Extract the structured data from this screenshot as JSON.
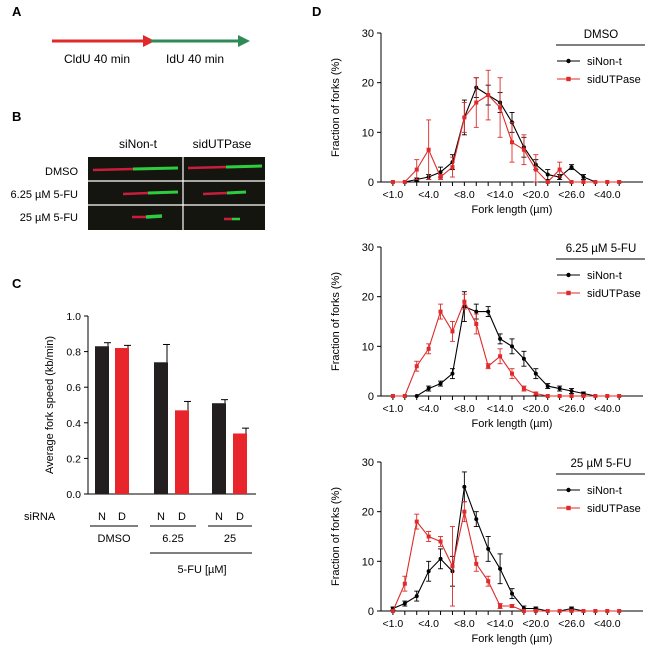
{
  "panels": {
    "A": {
      "letter": "A",
      "cldu_label": "CldU 40 min",
      "idu_label": "IdU 40 min",
      "colors": {
        "cldu": "#e02a2a",
        "idu": "#2e8b57"
      }
    },
    "B": {
      "letter": "B",
      "columns": [
        "siNon-t",
        "sidUTPase"
      ],
      "rows": [
        "DMSO",
        "6.25 µM 5-FU",
        "25 µM 5-FU"
      ],
      "colors": {
        "background": "#151510",
        "red": "#c81e3c",
        "green": "#2ecc40"
      }
    },
    "C": {
      "letter": "C",
      "siRNA_label": "siRNA",
      "group_labels": [
        "DMSO",
        "6.25",
        "25"
      ],
      "treatment_label": "5-FU [µM]"
    },
    "D": {
      "letter": "D"
    }
  },
  "chart_data": [
    {
      "id": "C",
      "type": "bar",
      "ylabel": "Average fork speed (kb/min)",
      "ylim": [
        0,
        1.0
      ],
      "yticks": [
        "0.0",
        "0.2",
        "0.4",
        "0.6",
        "0.8",
        "1.0"
      ],
      "groups": [
        "DMSO",
        "6.25",
        "25"
      ],
      "categories": [
        "N",
        "D",
        "N",
        "D",
        "N",
        "D"
      ],
      "values": [
        0.83,
        0.82,
        0.74,
        0.47,
        0.51,
        0.34
      ],
      "errors": [
        0.02,
        0.015,
        0.1,
        0.05,
        0.02,
        0.03
      ],
      "colors": [
        "#231f20",
        "#e8252b",
        "#231f20",
        "#e8252b",
        "#231f20",
        "#e8252b"
      ]
    },
    {
      "id": "D1",
      "type": "line",
      "title": "DMSO",
      "xlabel": "Fork length (µm)",
      "ylabel": "Fraction of forks (%)",
      "ylim": [
        0,
        30
      ],
      "yticks": [
        "0",
        "10",
        "20",
        "30"
      ],
      "xlim": [
        0,
        22
      ],
      "xtick_positions": [
        1,
        4,
        7,
        10,
        13,
        16,
        19
      ],
      "xtick_labels": [
        "<1.0",
        "<4.0",
        "<8.0",
        "<14.0",
        "<20.0",
        "<26.0",
        "<40.0"
      ],
      "series": [
        {
          "name": "siNon-t",
          "color": "#000000",
          "x": [
            1,
            2,
            3,
            4,
            5,
            6,
            7,
            8,
            9,
            10,
            11,
            12,
            13,
            14,
            15,
            16,
            17,
            18,
            19,
            20
          ],
          "y": [
            0,
            0,
            0.5,
            1,
            2,
            4,
            13,
            19,
            17.5,
            16,
            12,
            7,
            3.5,
            1.5,
            1,
            3,
            1,
            0,
            0,
            0
          ],
          "err": [
            0,
            0,
            0.3,
            0.5,
            1,
            1.5,
            3.5,
            2,
            2,
            2,
            2,
            2,
            1,
            1,
            0.5,
            0.5,
            0.5,
            0,
            0,
            0
          ]
        },
        {
          "name": "sidUTPase",
          "color": "#e02a2a",
          "x": [
            1,
            2,
            3,
            4,
            5,
            6,
            7,
            8,
            9,
            10,
            11,
            12,
            13,
            14,
            15,
            16,
            17,
            18,
            19,
            20
          ],
          "y": [
            0,
            0,
            2.5,
            6.5,
            1,
            3,
            13,
            16,
            17.5,
            15,
            8,
            6.5,
            2.5,
            0,
            2.5,
            0,
            0,
            0,
            0,
            0
          ],
          "err": [
            0,
            0,
            2,
            6,
            0.5,
            2,
            3,
            5,
            5,
            6,
            4,
            3,
            3,
            0,
            1.5,
            0,
            0,
            0,
            0,
            0
          ]
        }
      ],
      "legend": "top-right"
    },
    {
      "id": "D2",
      "type": "line",
      "title": "6.25 µM 5-FU",
      "xlabel": "Fork length (µm)",
      "ylabel": "Fraction of forks (%)",
      "ylim": [
        0,
        30
      ],
      "yticks": [
        "0",
        "10",
        "20",
        "30"
      ],
      "xlim": [
        0,
        22
      ],
      "xtick_positions": [
        1,
        4,
        7,
        10,
        13,
        16,
        19
      ],
      "xtick_labels": [
        "<1.0",
        "<4.0",
        "<8.0",
        "<14.0",
        "<20.0",
        "<26.0",
        "<40.0"
      ],
      "series": [
        {
          "name": "siNon-t",
          "color": "#000000",
          "x": [
            1,
            2,
            3,
            4,
            5,
            6,
            7,
            8,
            9,
            10,
            11,
            12,
            13,
            14,
            15,
            16,
            17,
            18,
            19,
            20
          ],
          "y": [
            0,
            0,
            0,
            1.5,
            2.5,
            4.5,
            18,
            17,
            17,
            11.5,
            10,
            7.5,
            4.5,
            2,
            1.5,
            1,
            0.5,
            0,
            0,
            0
          ],
          "err": [
            0,
            0,
            0,
            0.5,
            0.5,
            1,
            3,
            1.5,
            1,
            1,
            1.5,
            1.5,
            1,
            0.5,
            0.5,
            0.5,
            0.3,
            0,
            0,
            0
          ]
        },
        {
          "name": "sidUTPase",
          "color": "#e02a2a",
          "x": [
            1,
            2,
            3,
            4,
            5,
            6,
            7,
            8,
            9,
            10,
            11,
            12,
            13,
            14,
            15,
            16,
            17,
            18,
            19,
            20
          ],
          "y": [
            0,
            0,
            6,
            9.5,
            17,
            13,
            19,
            14.5,
            6,
            8,
            4.5,
            1.5,
            0.5,
            0,
            0,
            0,
            0,
            0,
            0,
            0
          ],
          "err": [
            0,
            0,
            1,
            1,
            1.5,
            2,
            1.5,
            2,
            0.5,
            1.5,
            1,
            0.5,
            0.3,
            0,
            0,
            0,
            0,
            0,
            0,
            0
          ]
        }
      ],
      "legend": "top-right"
    },
    {
      "id": "D3",
      "type": "line",
      "title": "25 µM 5-FU",
      "xlabel": "Fork length (µm)",
      "ylabel": "Fraction of forks (%)",
      "ylim": [
        0,
        30
      ],
      "yticks": [
        "0",
        "10",
        "20",
        "30"
      ],
      "xlim": [
        0,
        22
      ],
      "xtick_positions": [
        1,
        4,
        7,
        10,
        13,
        16,
        19
      ],
      "xtick_labels": [
        "<1.0",
        "<4.0",
        "<8.0",
        "<14.0",
        "<20.0",
        "<26.0",
        "<40.0"
      ],
      "series": [
        {
          "name": "siNon-t",
          "color": "#000000",
          "x": [
            1,
            2,
            3,
            4,
            5,
            6,
            7,
            8,
            9,
            10,
            11,
            12,
            13,
            14,
            15,
            16,
            17,
            18,
            19,
            20
          ],
          "y": [
            0.5,
            1.5,
            3,
            8,
            10.5,
            8,
            25,
            18.5,
            12.5,
            8.5,
            3.5,
            0.5,
            0.5,
            0,
            0,
            0.5,
            0,
            0,
            0,
            0
          ],
          "err": [
            0.3,
            0.5,
            1,
            2,
            2,
            3,
            3,
            1.5,
            2.5,
            3,
            1,
            0.5,
            0.3,
            0,
            0,
            0.3,
            0,
            0,
            0,
            0
          ]
        },
        {
          "name": "sidUTPase",
          "color": "#e02a2a",
          "x": [
            1,
            2,
            3,
            4,
            5,
            6,
            7,
            8,
            9,
            10,
            11,
            12,
            13,
            14,
            15,
            16,
            17,
            18,
            19,
            20
          ],
          "y": [
            0,
            5.5,
            18,
            15,
            14,
            9,
            20,
            9.5,
            6,
            1,
            1,
            0,
            0,
            0,
            0,
            0,
            0,
            0,
            0,
            0
          ],
          "err": [
            0,
            1.5,
            1.5,
            1,
            1,
            8,
            2,
            1.5,
            1,
            0.5,
            0.3,
            0,
            0,
            0,
            0,
            0,
            0,
            0,
            0,
            0
          ]
        }
      ],
      "legend": "top-right"
    }
  ]
}
